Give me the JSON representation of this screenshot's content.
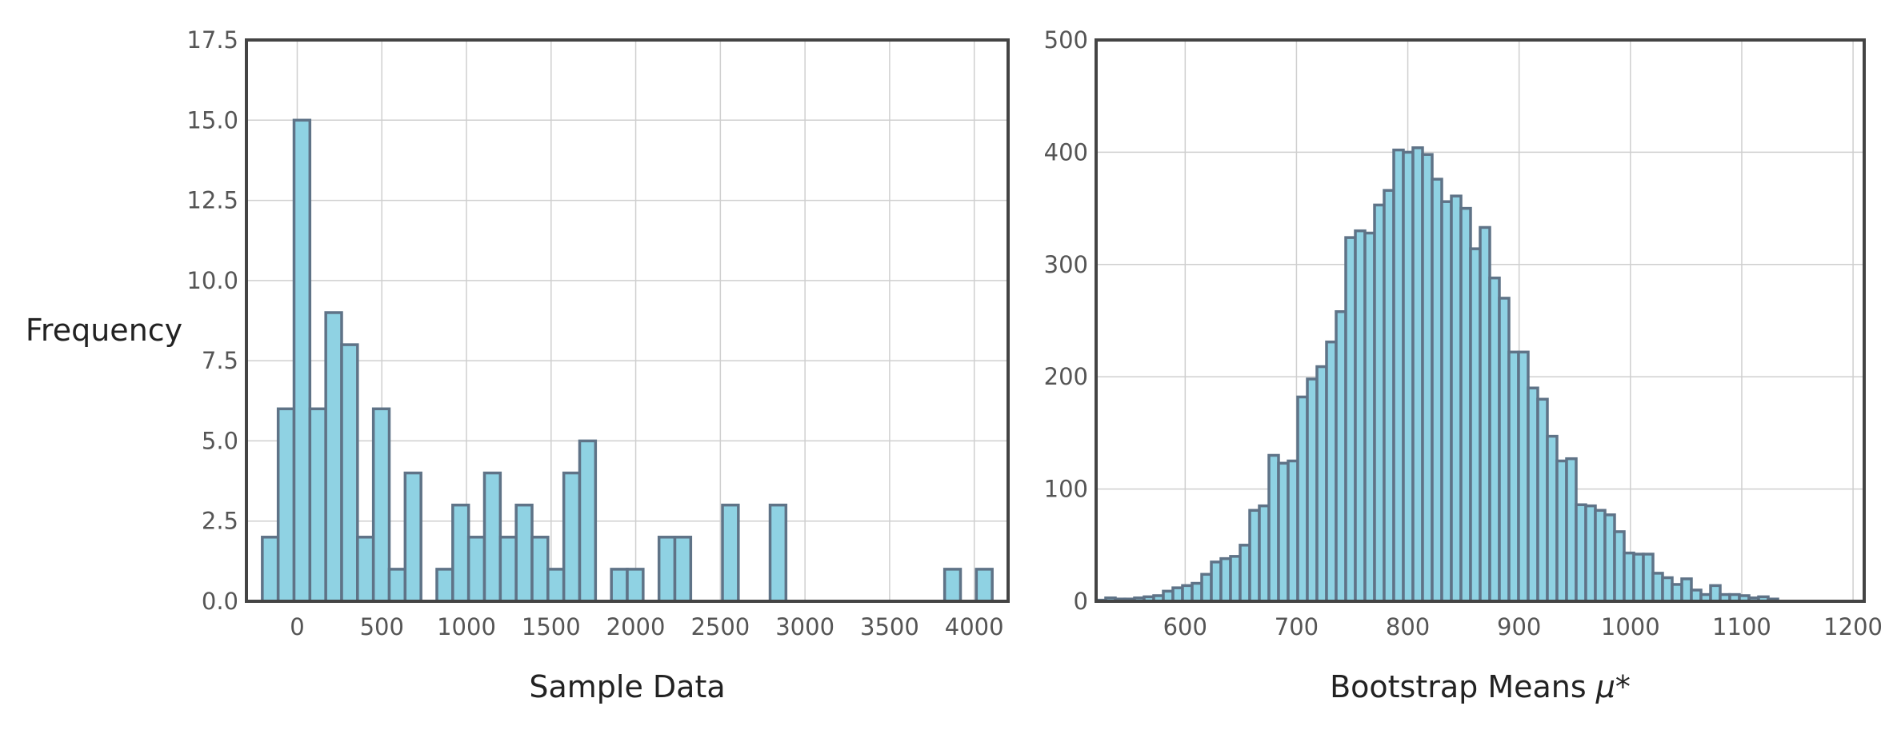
{
  "style": {
    "bar_fill": "#8fd2e3",
    "bar_edge": "#5f7387",
    "grid": true
  },
  "chart_data": [
    {
      "type": "bar",
      "xlabel": "Sample Data",
      "ylabel": "Frequency",
      "xlim": [
        -300,
        4200
      ],
      "ylim": [
        0,
        17.5
      ],
      "xticks": [
        0,
        500,
        1000,
        1500,
        2000,
        2500,
        3000,
        3500,
        4000
      ],
      "yticks": [
        0,
        2.5,
        5,
        7.5,
        10,
        12.5,
        15,
        17.5
      ],
      "ytick_labels": [
        "0.0",
        "2.5",
        "5.0",
        "7.5",
        "10.0",
        "12.5",
        "15.0",
        "17.5"
      ],
      "bin_start": -300,
      "bin_width": 93.75,
      "values": [
        0,
        2,
        6,
        15,
        6,
        9,
        8,
        2,
        6,
        1,
        4,
        0,
        1,
        3,
        2,
        4,
        2,
        3,
        2,
        1,
        4,
        5,
        0,
        1,
        1,
        0,
        2,
        2,
        0,
        0,
        3,
        0,
        0,
        3,
        0,
        0,
        0,
        0,
        0,
        0,
        0,
        0,
        0,
        0,
        1,
        0,
        1,
        0
      ]
    },
    {
      "type": "bar",
      "xlabel": "Bootstrap Means",
      "xlabel_symbol": "μ*",
      "ylabel": "",
      "xlim": [
        520,
        1210
      ],
      "ylim": [
        0,
        500
      ],
      "xticks": [
        600,
        700,
        800,
        900,
        1000,
        1100,
        1200
      ],
      "yticks": [
        0,
        100,
        200,
        300,
        400,
        500
      ],
      "ytick_labels": [
        "0",
        "100",
        "200",
        "300",
        "400",
        "500"
      ],
      "bin_start": 520,
      "bin_width": 8.625,
      "values": [
        1,
        3,
        2,
        2,
        3,
        4,
        5,
        9,
        12,
        14,
        16,
        24,
        35,
        38,
        40,
        50,
        81,
        85,
        130,
        123,
        125,
        182,
        198,
        209,
        231,
        258,
        324,
        330,
        328,
        353,
        366,
        402,
        400,
        404,
        398,
        376,
        356,
        361,
        350,
        314,
        333,
        288,
        270,
        222,
        222,
        190,
        180,
        147,
        125,
        127,
        86,
        85,
        81,
        77,
        62,
        43,
        42,
        42,
        25,
        21,
        15,
        20,
        10,
        6,
        14,
        6,
        6,
        5,
        3,
        4,
        2
      ]
    }
  ]
}
